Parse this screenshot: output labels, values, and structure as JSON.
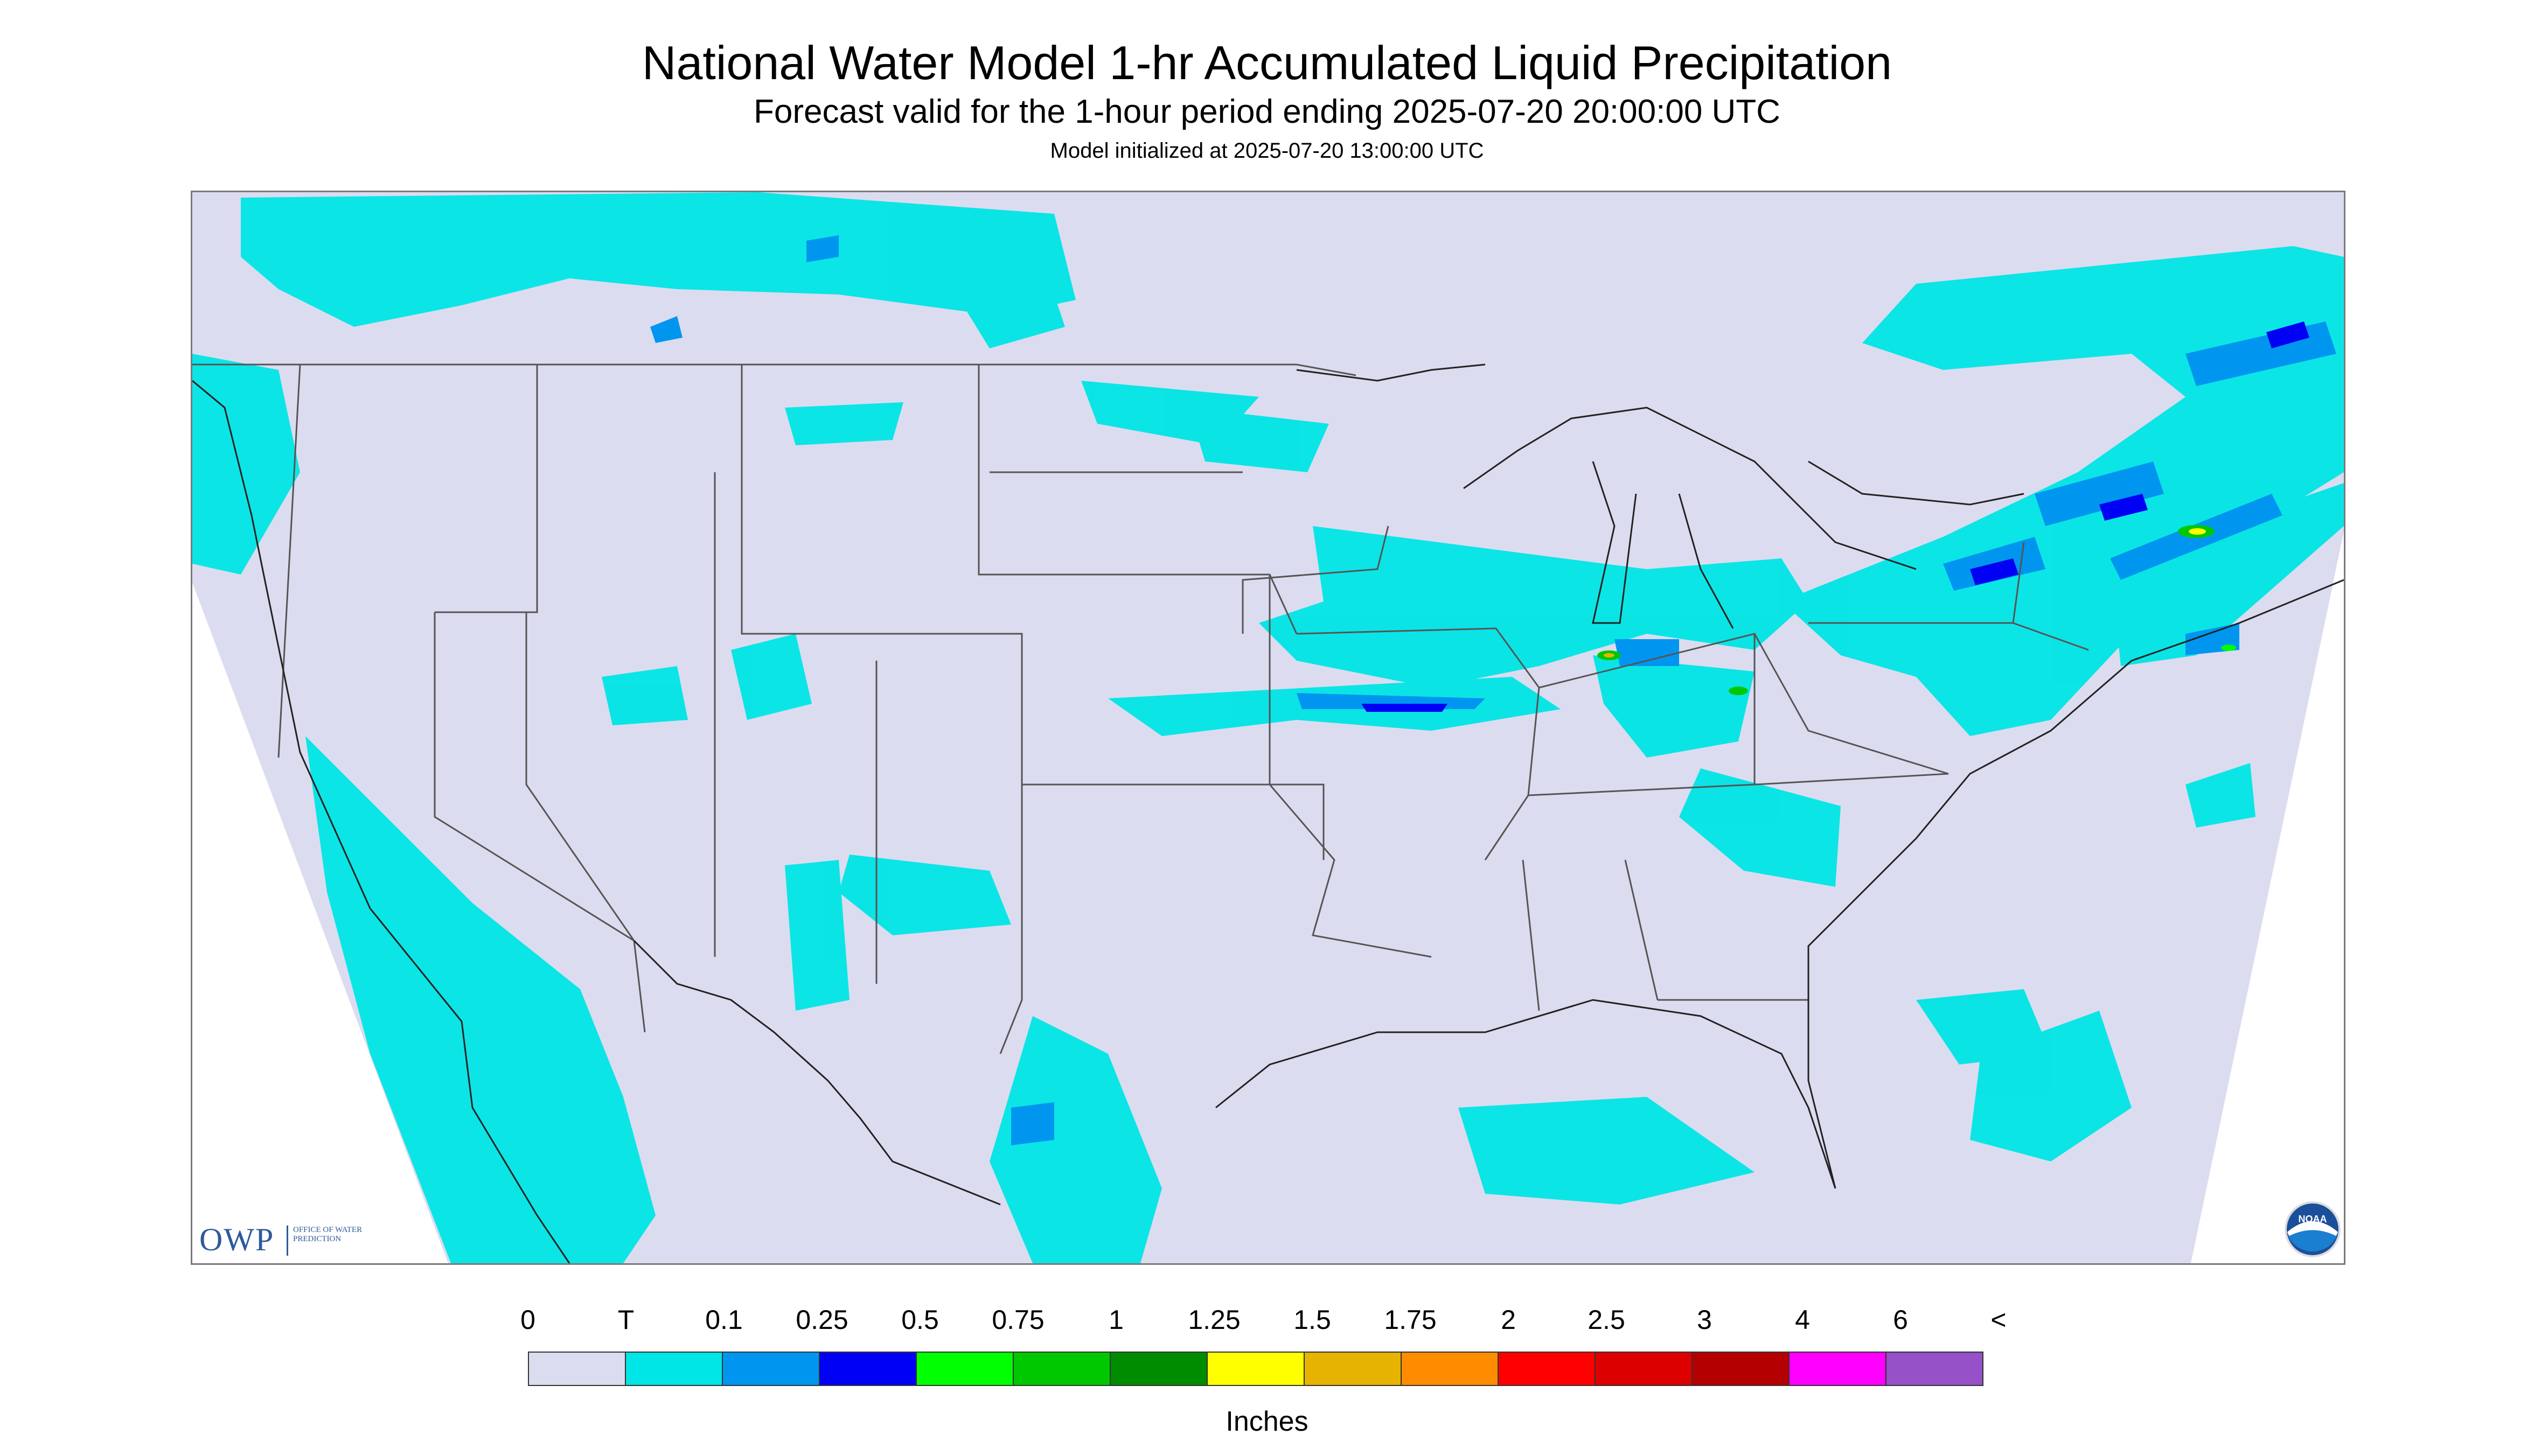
{
  "header": {
    "title": "National Water Model 1-hr Accumulated Liquid Precipitation",
    "subtitle": "Forecast valid for the 1-hour period ending 2025-07-20 20:00:00 UTC",
    "init_line": "Model initialized at 2025-07-20 13:00:00 UTC"
  },
  "legend": {
    "units": "Inches",
    "ticks": [
      "0",
      "T",
      "0.1",
      "0.25",
      "0.5",
      "0.75",
      "1",
      "1.25",
      "1.5",
      "1.75",
      "2",
      "2.5",
      "3",
      "4",
      "6",
      "<"
    ],
    "colors": [
      "#dcdcf0",
      "#00e5e5",
      "#0096f0",
      "#0000f5",
      "#00ff00",
      "#00c800",
      "#008c00",
      "#ffff00",
      "#e6b400",
      "#ff8c00",
      "#ff0000",
      "#dc0000",
      "#b40000",
      "#ff00ff",
      "#9650c8"
    ]
  },
  "map": {
    "projection_fill": "#dcdcf0",
    "background": "#ffffff",
    "boundary_color": "#555555"
  },
  "logos": {
    "owp_letters": "OWP",
    "owp_name": "OFFICE OF WATER PREDICTION",
    "noaa": "NOAA"
  }
}
